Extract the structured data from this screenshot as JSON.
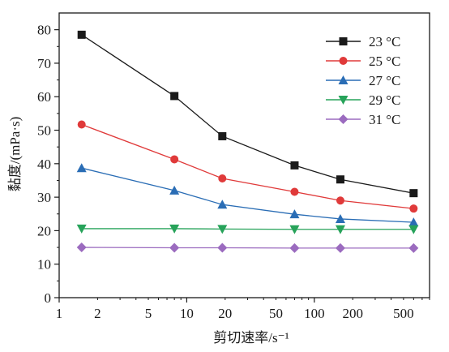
{
  "chart_data": {
    "type": "line",
    "xscale": "log",
    "xlabel": "剪切速率/s⁻¹",
    "ylabel": "黏度/(mPa·s)",
    "xlim": [
      1,
      800
    ],
    "ylim": [
      0,
      85
    ],
    "x": [
      1.5,
      8,
      19,
      70,
      160,
      600
    ],
    "x_ticks": [
      1,
      2,
      5,
      10,
      20,
      50,
      100,
      200,
      500
    ],
    "x_tick_labels": [
      "1",
      "2",
      "5",
      "10",
      "20",
      "50",
      "100",
      "200",
      "500"
    ],
    "y_ticks": [
      0,
      10,
      20,
      30,
      40,
      50,
      60,
      70,
      80
    ],
    "y_tick_labels": [
      "0",
      "10",
      "20",
      "30",
      "40",
      "50",
      "60",
      "70",
      "80"
    ],
    "legend_position": "top-right",
    "grid": false,
    "series": [
      {
        "name": "23 °C",
        "marker": "square",
        "color": "#1a1a1a",
        "values": [
          78.5,
          60.2,
          48.2,
          39.5,
          35.3,
          31.2
        ]
      },
      {
        "name": "25 °C",
        "marker": "circle",
        "color": "#e03a3a",
        "values": [
          51.7,
          41.3,
          35.6,
          31.6,
          29.0,
          26.6
        ]
      },
      {
        "name": "27 °C",
        "marker": "triangle-up",
        "color": "#2a6db5",
        "values": [
          38.7,
          32.0,
          27.8,
          24.9,
          23.5,
          22.5
        ]
      },
      {
        "name": "29 °C",
        "marker": "triangle-down",
        "color": "#27a35a",
        "values": [
          20.6,
          20.6,
          20.5,
          20.4,
          20.4,
          20.4
        ]
      },
      {
        "name": "31 °C",
        "marker": "diamond",
        "color": "#9b6bbf",
        "values": [
          15.0,
          14.9,
          14.9,
          14.8,
          14.8,
          14.8
        ]
      }
    ]
  }
}
